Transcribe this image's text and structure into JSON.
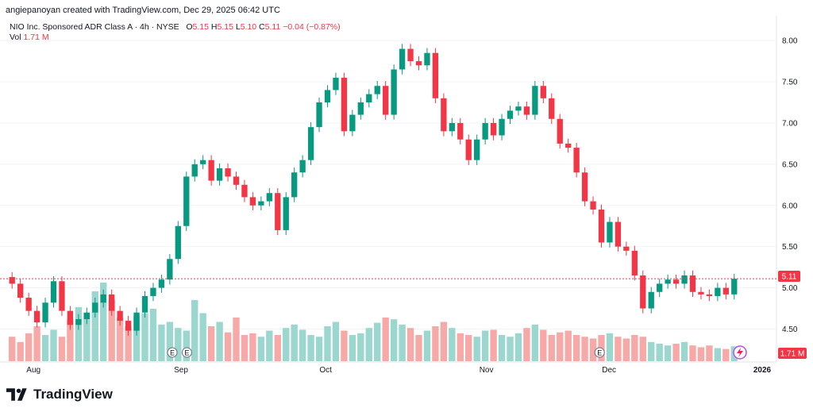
{
  "header": {
    "attribution": "angiepanoyan created with TradingView.com, Dec 29, 2025 06:42 UTC"
  },
  "legend": {
    "symbol": "NIO Inc. Sponsored ADR Class A · 4h · NYSE",
    "o_label": "O",
    "o_value": "5.15",
    "h_label": "H",
    "h_value": "5.15",
    "l_label": "L",
    "l_value": "5.10",
    "c_label": "C",
    "c_value": "5.11",
    "change": "−0.04 (−0.87%)",
    "vol_label": "Vol",
    "vol_value": "1.71 M"
  },
  "footer": {
    "brand": "TradingView"
  },
  "colors": {
    "up": "#089981",
    "down": "#f23645",
    "up_vol": "#9bd6cf",
    "down_vol": "#f7a9a7"
  },
  "chart_data": {
    "type": "candlestick",
    "title": "NIO Inc. Sponsored ADR Class A · 4h · NYSE",
    "ylim": [
      4.1,
      8.3
    ],
    "y_ticks": [
      "8.00",
      "7.50",
      "7.00",
      "6.50",
      "6.00",
      "5.50",
      "5.00",
      "4.50"
    ],
    "x_ticks": [
      "Aug",
      "Sep",
      "Oct",
      "Nov",
      "Dec",
      "2026"
    ],
    "last_price_label": "5.11",
    "last_volume_label": "1.71 M",
    "earnings_markers": [
      "E",
      "E",
      "E"
    ],
    "close": [
      5.05,
      4.88,
      4.72,
      4.58,
      4.82,
      5.08,
      4.72,
      4.55,
      4.62,
      4.7,
      4.82,
      4.92,
      4.72,
      4.6,
      4.48,
      4.7,
      4.9,
      5.0,
      5.1,
      5.35,
      5.75,
      6.35,
      6.5,
      6.55,
      6.3,
      6.45,
      6.35,
      6.25,
      6.1,
      6.0,
      6.05,
      6.15,
      5.7,
      6.1,
      6.4,
      6.55,
      6.95,
      7.25,
      7.4,
      7.55,
      6.9,
      7.1,
      7.25,
      7.35,
      7.45,
      7.1,
      7.65,
      7.9,
      7.75,
      7.7,
      7.85,
      7.3,
      6.9,
      7.0,
      6.8,
      6.55,
      6.8,
      7.0,
      6.85,
      7.05,
      7.15,
      7.2,
      7.1,
      7.45,
      7.3,
      7.05,
      6.75,
      6.7,
      6.4,
      6.05,
      5.95,
      5.55,
      5.8,
      5.5,
      5.45,
      5.15,
      4.75,
      4.95,
      5.05,
      5.1,
      5.05,
      5.15,
      4.95,
      4.92,
      4.9,
      5.0,
      4.92,
      5.11
    ],
    "volume": [
      0.28,
      0.22,
      0.32,
      0.4,
      0.3,
      0.36,
      0.28,
      0.48,
      0.62,
      0.55,
      0.8,
      0.9,
      0.7,
      0.5,
      0.4,
      0.52,
      0.55,
      0.6,
      0.42,
      0.45,
      0.38,
      0.35,
      0.7,
      0.55,
      0.4,
      0.45,
      0.33,
      0.5,
      0.3,
      0.32,
      0.28,
      0.35,
      0.3,
      0.38,
      0.42,
      0.36,
      0.3,
      0.28,
      0.4,
      0.45,
      0.35,
      0.3,
      0.32,
      0.38,
      0.44,
      0.5,
      0.48,
      0.42,
      0.38,
      0.3,
      0.35,
      0.4,
      0.45,
      0.38,
      0.32,
      0.3,
      0.28,
      0.35,
      0.36,
      0.3,
      0.28,
      0.32,
      0.38,
      0.42,
      0.36,
      0.3,
      0.33,
      0.35,
      0.3,
      0.28,
      0.26,
      0.3,
      0.32,
      0.28,
      0.26,
      0.3,
      0.28,
      0.22,
      0.2,
      0.18,
      0.2,
      0.22,
      0.18,
      0.16,
      0.18,
      0.15,
      0.14,
      0.17
    ]
  }
}
